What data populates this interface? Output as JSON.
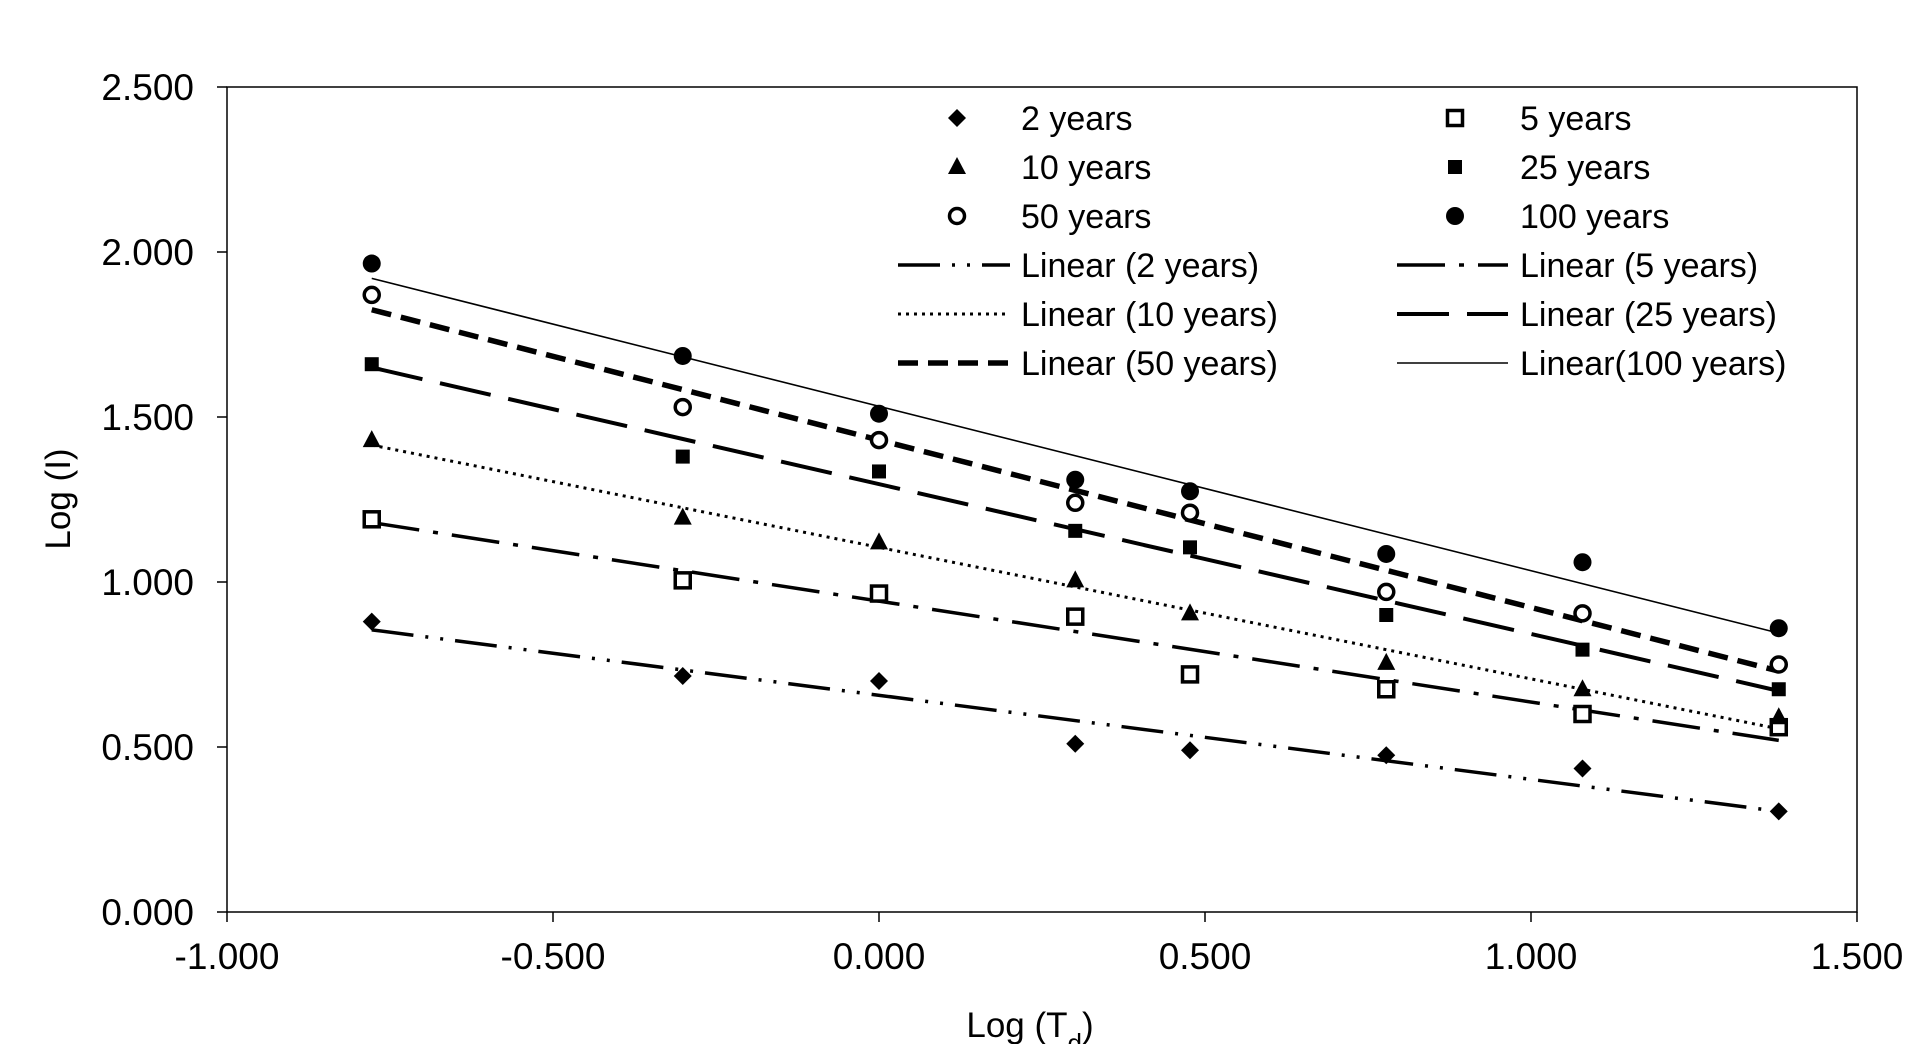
{
  "chart_data": {
    "type": "scatter",
    "xlabel": "Log (T",
    "xlabel_sub": "d",
    "xlabel_close": ")",
    "ylabel": "Log (I)",
    "xlim": [
      -1.0,
      1.5
    ],
    "ylim": [
      0.0,
      2.5
    ],
    "grid": false,
    "legend_position": "top-right inside",
    "x_ticks": [
      "-1.000",
      "-0.500",
      "0.000",
      "0.500",
      "1.000",
      "1.500"
    ],
    "y_ticks": [
      "0.000",
      "0.500",
      "1.000",
      "1.500",
      "2.000",
      "2.500"
    ],
    "x": [
      -0.778,
      -0.301,
      0.0,
      0.301,
      0.477,
      0.778,
      1.079,
      1.38
    ],
    "series": [
      {
        "name": "2 years",
        "marker": "diamond",
        "values": [
          0.88,
          0.715,
          0.7,
          0.51,
          0.49,
          0.475,
          0.435,
          0.305
        ],
        "trend_name": "Linear (2 years)",
        "trend_style": "dash-dot-dot",
        "trend": [
          0.855,
          0.305
        ]
      },
      {
        "name": "5 years",
        "marker": "open-square",
        "values": [
          1.19,
          1.005,
          0.965,
          0.895,
          0.72,
          0.675,
          0.6,
          0.56
        ],
        "trend_name": "Linear (5 years)",
        "trend_style": "dash-dot",
        "trend": [
          1.18,
          0.52
        ]
      },
      {
        "name": "10 years",
        "marker": "triangle",
        "values": [
          1.43,
          1.195,
          1.12,
          1.005,
          0.905,
          0.755,
          0.675,
          0.59
        ],
        "trend_name": "Linear (10 years)",
        "trend_style": "dotted",
        "trend": [
          1.415,
          0.555
        ]
      },
      {
        "name": "25 years",
        "marker": "filled-square",
        "values": [
          1.66,
          1.38,
          1.335,
          1.155,
          1.105,
          0.9,
          0.795,
          0.675
        ],
        "trend_name": "Linear (25 years)",
        "trend_style": "long-dash",
        "trend": [
          1.65,
          0.67
        ]
      },
      {
        "name": "50 years",
        "marker": "open-circle",
        "values": [
          1.87,
          1.53,
          1.43,
          1.24,
          1.21,
          0.97,
          0.905,
          0.75
        ],
        "trend_name": "Linear (50 years)",
        "trend_style": "bold-dash",
        "trend": [
          1.825,
          0.73
        ]
      },
      {
        "name": "100 years",
        "marker": "filled-circle",
        "values": [
          1.965,
          1.685,
          1.51,
          1.31,
          1.275,
          1.085,
          1.06,
          0.86
        ],
        "trend_name": "Linear(100 years)",
        "trend_style": "solid-thin",
        "trend": [
          1.92,
          0.845
        ]
      }
    ]
  }
}
